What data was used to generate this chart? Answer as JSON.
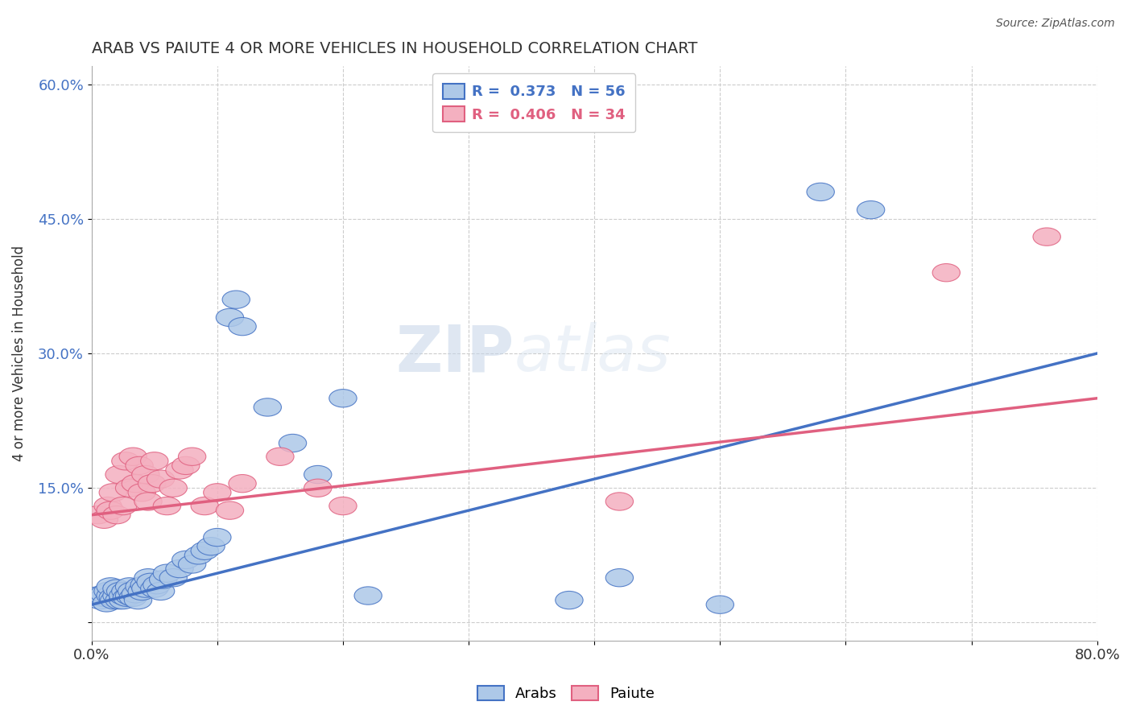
{
  "title": "ARAB VS PAIUTE 4 OR MORE VEHICLES IN HOUSEHOLD CORRELATION CHART",
  "source": "Source: ZipAtlas.com",
  "ylabel": "4 or more Vehicles in Household",
  "xlim": [
    0.0,
    0.8
  ],
  "ylim": [
    -0.02,
    0.62
  ],
  "arab_R": 0.373,
  "arab_N": 56,
  "paiute_R": 0.406,
  "paiute_N": 34,
  "arab_color": "#adc8e8",
  "arab_line_color": "#4472c4",
  "paiute_color": "#f4b0c0",
  "paiute_line_color": "#e06080",
  "watermark_zip": "ZIP",
  "watermark_atlas": "atlas",
  "arab_scatter_x": [
    0.005,
    0.007,
    0.01,
    0.01,
    0.012,
    0.013,
    0.015,
    0.015,
    0.017,
    0.018,
    0.02,
    0.02,
    0.022,
    0.023,
    0.025,
    0.025,
    0.027,
    0.028,
    0.03,
    0.03,
    0.032,
    0.033,
    0.035,
    0.037,
    0.038,
    0.04,
    0.042,
    0.043,
    0.045,
    0.047,
    0.05,
    0.052,
    0.055,
    0.057,
    0.06,
    0.065,
    0.07,
    0.075,
    0.08,
    0.085,
    0.09,
    0.095,
    0.1,
    0.11,
    0.115,
    0.12,
    0.14,
    0.16,
    0.18,
    0.2,
    0.22,
    0.38,
    0.42,
    0.5,
    0.58,
    0.62
  ],
  "arab_scatter_y": [
    0.03,
    0.025,
    0.028,
    0.032,
    0.022,
    0.035,
    0.03,
    0.04,
    0.028,
    0.025,
    0.03,
    0.038,
    0.025,
    0.035,
    0.025,
    0.03,
    0.035,
    0.028,
    0.03,
    0.04,
    0.035,
    0.028,
    0.032,
    0.025,
    0.04,
    0.035,
    0.042,
    0.038,
    0.05,
    0.045,
    0.038,
    0.042,
    0.035,
    0.048,
    0.055,
    0.05,
    0.06,
    0.07,
    0.065,
    0.075,
    0.08,
    0.085,
    0.095,
    0.34,
    0.36,
    0.33,
    0.24,
    0.2,
    0.165,
    0.25,
    0.03,
    0.025,
    0.05,
    0.02,
    0.48,
    0.46
  ],
  "paiute_scatter_x": [
    0.005,
    0.01,
    0.013,
    0.015,
    0.017,
    0.02,
    0.022,
    0.025,
    0.027,
    0.03,
    0.033,
    0.035,
    0.038,
    0.04,
    0.043,
    0.045,
    0.048,
    0.05,
    0.055,
    0.06,
    0.065,
    0.07,
    0.075,
    0.08,
    0.09,
    0.1,
    0.11,
    0.12,
    0.15,
    0.18,
    0.2,
    0.42,
    0.68,
    0.76
  ],
  "paiute_scatter_y": [
    0.12,
    0.115,
    0.13,
    0.125,
    0.145,
    0.12,
    0.165,
    0.13,
    0.18,
    0.15,
    0.185,
    0.155,
    0.175,
    0.145,
    0.165,
    0.135,
    0.155,
    0.18,
    0.16,
    0.13,
    0.15,
    0.17,
    0.175,
    0.185,
    0.13,
    0.145,
    0.125,
    0.155,
    0.185,
    0.15,
    0.13,
    0.135,
    0.39,
    0.43
  ],
  "arab_line_x0": 0.0,
  "arab_line_y0": 0.02,
  "arab_line_x1": 0.8,
  "arab_line_y1": 0.3,
  "paiute_line_x0": 0.0,
  "paiute_line_y0": 0.12,
  "paiute_line_x1": 0.8,
  "paiute_line_y1": 0.25
}
